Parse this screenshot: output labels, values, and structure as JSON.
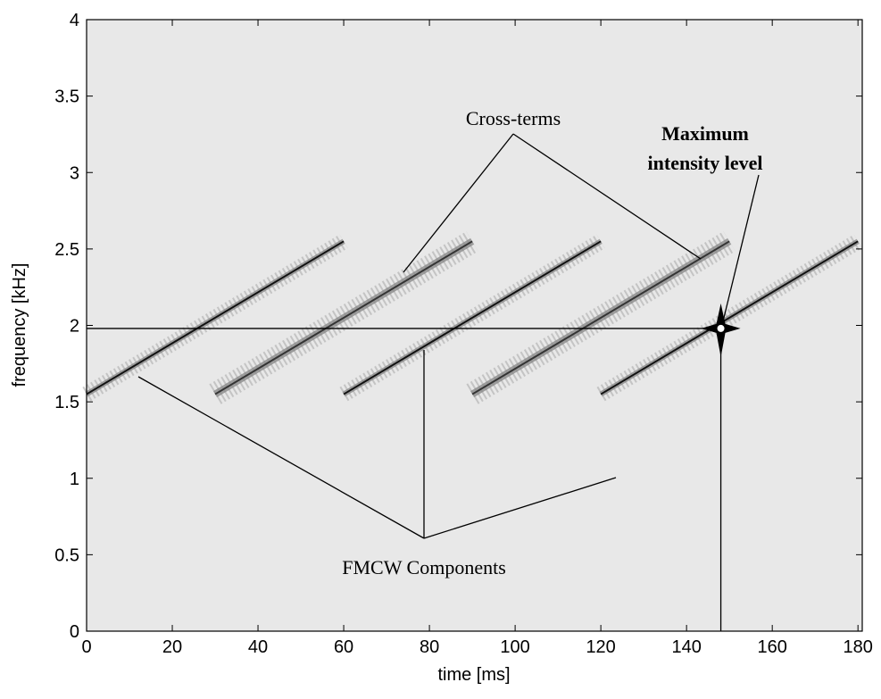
{
  "chart_data": {
    "type": "spectrogram",
    "xlabel": "time [ms]",
    "ylabel": "frequency [kHz]",
    "xlim": [
      0,
      181
    ],
    "ylim": [
      0,
      4
    ],
    "xticks": [
      0,
      20,
      40,
      60,
      80,
      100,
      120,
      140,
      160,
      180
    ],
    "yticks": [
      0,
      0.5,
      1,
      1.5,
      2,
      2.5,
      3,
      3.5,
      4
    ],
    "background": "#e8e8e8",
    "series": [
      {
        "x": [
          0,
          60
        ],
        "values": [
          1.55,
          2.55
        ],
        "color": "#111111"
      },
      {
        "x": [
          60,
          120
        ],
        "values": [
          1.55,
          2.55
        ],
        "color": "#111111"
      },
      {
        "x": [
          120,
          180
        ],
        "values": [
          1.55,
          2.55
        ],
        "color": "#111111"
      },
      {
        "x": [
          30,
          90
        ],
        "values": [
          1.55,
          2.55
        ],
        "color": "#333333"
      },
      {
        "x": [
          90,
          150
        ],
        "values": [
          1.55,
          2.55
        ],
        "color": "#333333"
      }
    ],
    "maximum": {
      "x": 148,
      "y": 1.98
    },
    "annotations": [
      "Cross-terms",
      "Maximum",
      "intensity level",
      "FMCW Components"
    ]
  }
}
